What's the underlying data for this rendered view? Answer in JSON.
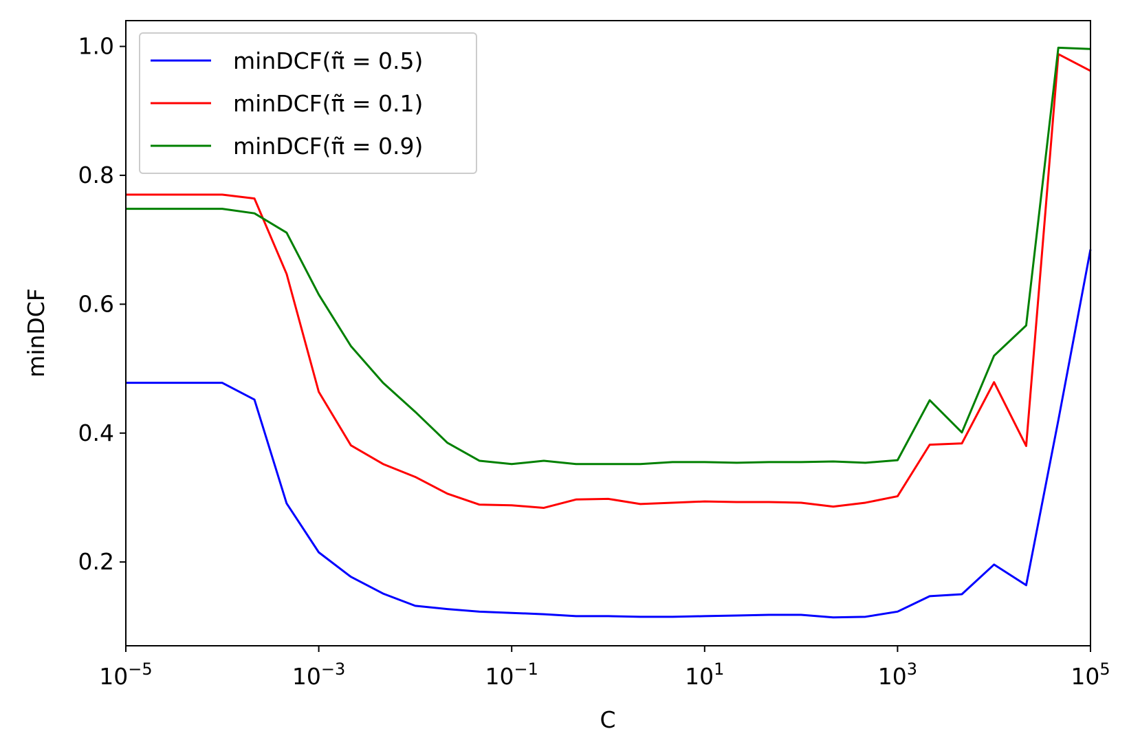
{
  "chart_data": {
    "type": "line",
    "title": "",
    "xlabel": "C",
    "ylabel": "minDCF",
    "xscale": "log",
    "xlim": [
      1e-05,
      100000
    ],
    "ylim": [
      0.07,
      1.04
    ],
    "grid": false,
    "legend_position": "top-left",
    "x_ticks": [
      {
        "value": 1e-05,
        "base": "10",
        "exp": "−5"
      },
      {
        "value": 0.001,
        "base": "10",
        "exp": "−3"
      },
      {
        "value": 0.1,
        "base": "10",
        "exp": "−1"
      },
      {
        "value": 10,
        "base": "10",
        "exp": "1"
      },
      {
        "value": 1000,
        "base": "10",
        "exp": "3"
      },
      {
        "value": 100000,
        "base": "10",
        "exp": "5"
      }
    ],
    "y_ticks": [
      {
        "value": 0.2,
        "label": "0.2"
      },
      {
        "value": 0.4,
        "label": "0.4"
      },
      {
        "value": 0.6,
        "label": "0.6"
      },
      {
        "value": 0.8,
        "label": "0.8"
      },
      {
        "value": 1.0,
        "label": "1.0"
      }
    ],
    "x": [
      1e-05,
      0.0001,
      0.0002154,
      0.0004642,
      0.001,
      0.002154,
      0.004642,
      0.01,
      0.02154,
      0.04642,
      0.1,
      0.2154,
      0.4642,
      1,
      2.154,
      4.642,
      10,
      21.54,
      46.42,
      100,
      215.4,
      464.2,
      1000,
      2154,
      4642,
      10000,
      21540,
      46420,
      100000
    ],
    "series": [
      {
        "name": "minDCF(π̃ = 0.5)",
        "color": "#0000ff",
        "values": [
          0.478,
          0.478,
          0.452,
          0.291,
          0.215,
          0.177,
          0.151,
          0.132,
          0.127,
          0.123,
          0.121,
          0.119,
          0.116,
          0.116,
          0.115,
          0.115,
          0.116,
          0.117,
          0.118,
          0.118,
          0.114,
          0.115,
          0.123,
          0.147,
          0.15,
          0.196,
          0.164,
          0.42,
          0.685
        ]
      },
      {
        "name": "minDCF(π̃ = 0.1)",
        "color": "#ff0000",
        "values": [
          0.77,
          0.77,
          0.764,
          0.647,
          0.464,
          0.381,
          0.352,
          0.332,
          0.306,
          0.289,
          0.288,
          0.284,
          0.297,
          0.298,
          0.29,
          0.292,
          0.294,
          0.293,
          0.293,
          0.292,
          0.286,
          0.292,
          0.302,
          0.382,
          0.384,
          0.479,
          0.38,
          0.988,
          0.962
        ]
      },
      {
        "name": "minDCF(π̃ = 0.9)",
        "color": "#008000",
        "values": [
          0.748,
          0.748,
          0.741,
          0.711,
          0.615,
          0.535,
          0.478,
          0.433,
          0.385,
          0.357,
          0.352,
          0.357,
          0.352,
          0.352,
          0.352,
          0.355,
          0.355,
          0.354,
          0.355,
          0.355,
          0.356,
          0.354,
          0.358,
          0.451,
          0.401,
          0.52,
          0.567,
          0.998,
          0.996
        ]
      }
    ]
  }
}
